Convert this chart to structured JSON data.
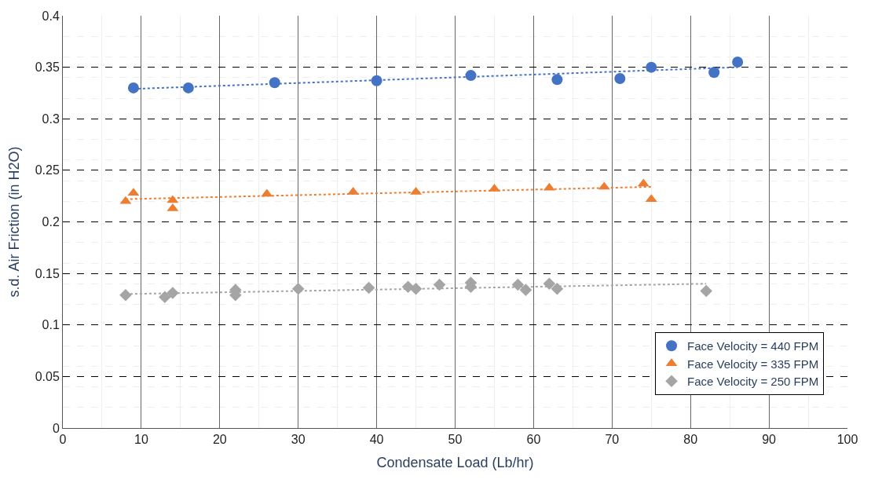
{
  "chart_data": {
    "type": "scatter",
    "xlabel": "Condensate Load (Lb/hr)",
    "ylabel": "s.d. Air Friction (in H2O)",
    "xlim": [
      0,
      100
    ],
    "xticks": [
      0,
      10,
      20,
      30,
      40,
      50,
      60,
      70,
      80,
      90,
      100
    ],
    "ylim": [
      0,
      0.4
    ],
    "yticks": [
      0,
      0.05,
      0.1,
      0.15,
      0.2,
      0.25,
      0.3,
      0.35,
      0.4
    ],
    "grid": true,
    "legend": "bottom right",
    "series": [
      {
        "name": "Face Velocity = 440 FPM",
        "color": "#4472c4",
        "marker": "circle",
        "x": [
          9,
          16,
          27,
          40,
          52,
          63,
          71,
          75,
          83,
          86
        ],
        "values": [
          0.33,
          0.33,
          0.335,
          0.337,
          0.342,
          0.338,
          0.339,
          0.35,
          0.345,
          0.355
        ]
      },
      {
        "name": "Face Velocity = 335 FPM",
        "color": "#ed7d31",
        "marker": "triangle",
        "x": [
          8,
          9,
          14,
          14,
          26,
          37,
          45,
          55,
          62,
          69,
          74,
          75
        ],
        "values": [
          0.22,
          0.228,
          0.221,
          0.213,
          0.227,
          0.229,
          0.229,
          0.232,
          0.233,
          0.234,
          0.237,
          0.222
        ]
      },
      {
        "name": "Face Velocity = 250 FPM",
        "color": "#a5a5a5",
        "marker": "diamond",
        "x": [
          8,
          13,
          14,
          22,
          22,
          30,
          39,
          44,
          45,
          48,
          52,
          52,
          58,
          59,
          62,
          63,
          82
        ],
        "values": [
          0.129,
          0.127,
          0.131,
          0.134,
          0.129,
          0.135,
          0.136,
          0.137,
          0.135,
          0.139,
          0.141,
          0.137,
          0.139,
          0.134,
          0.14,
          0.135,
          0.133
        ]
      },
      {
        "type": "line",
        "line_style": "dotted",
        "color": "#4472c4",
        "x": [
          9,
          86
        ],
        "values": [
          0.329,
          0.35
        ]
      },
      {
        "type": "line",
        "line_style": "dotted",
        "color": "#ed7d31",
        "x": [
          8,
          75
        ],
        "values": [
          0.222,
          0.234
        ]
      },
      {
        "type": "line",
        "line_style": "dotted",
        "color": "#a5a5a5",
        "x": [
          8,
          82
        ],
        "values": [
          0.13,
          0.14
        ]
      }
    ]
  }
}
